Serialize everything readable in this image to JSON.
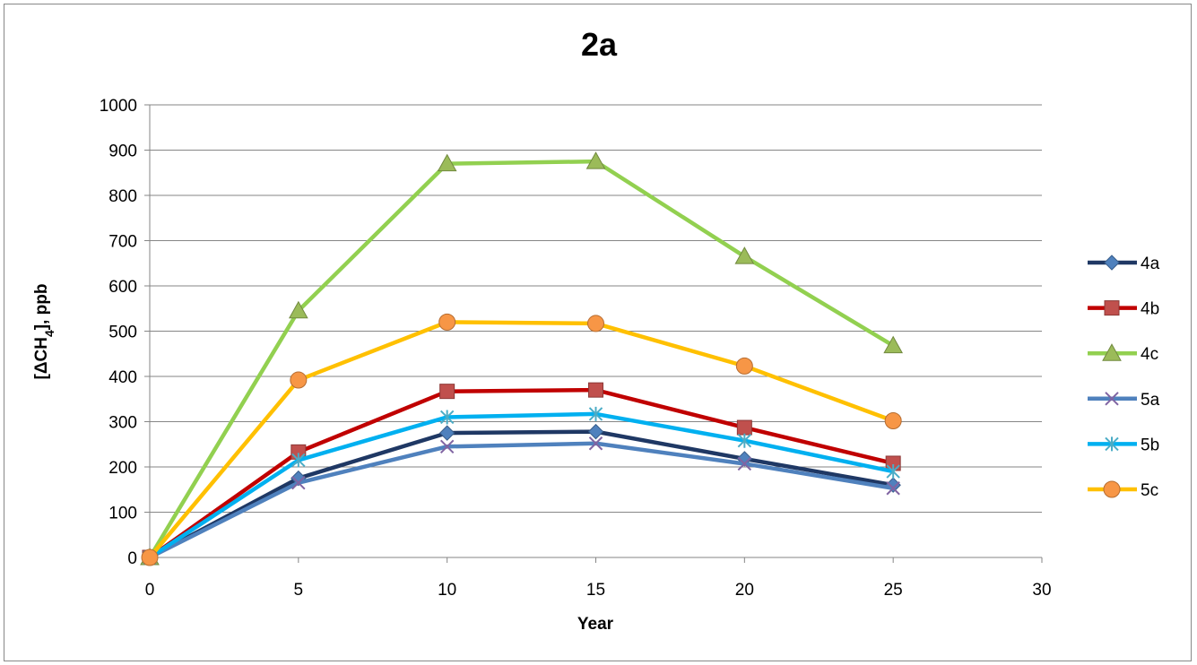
{
  "chart_data": {
    "type": "line",
    "title": "2a",
    "xlabel": "Year",
    "ylabel": {
      "main": "[ΔCH",
      "sub": "4",
      "tail": "], ppb"
    },
    "xlim": [
      0,
      30
    ],
    "ylim": [
      0,
      1000
    ],
    "xticks": [
      "0",
      "5",
      "10",
      "15",
      "20",
      "25",
      "30"
    ],
    "yticks": [
      "0",
      "100",
      "200",
      "300",
      "400",
      "500",
      "600",
      "700",
      "800",
      "900",
      "1000"
    ],
    "grid": "horizontal",
    "legend_position": "right",
    "x": [
      0,
      5,
      10,
      15,
      20,
      25
    ],
    "series": [
      {
        "name": "4a",
        "color": "#1F3864",
        "marker": "diamond",
        "marker_color": "#4F81BD",
        "values": [
          0,
          175,
          275,
          278,
          218,
          160
        ]
      },
      {
        "name": "4b",
        "color": "#C00000",
        "marker": "square",
        "marker_color": "#C0504D",
        "values": [
          0,
          233,
          367,
          370,
          287,
          208
        ]
      },
      {
        "name": "4c",
        "color": "#92D050",
        "marker": "triangle",
        "marker_color": "#9BBB59",
        "values": [
          0,
          545,
          870,
          875,
          665,
          468
        ]
      },
      {
        "name": "5a",
        "color": "#4F81BD",
        "marker": "x",
        "marker_color": "#8064A2",
        "values": [
          0,
          165,
          245,
          252,
          207,
          153
        ]
      },
      {
        "name": "5b",
        "color": "#00B0F0",
        "marker": "star",
        "marker_color": "#4BACC6",
        "values": [
          0,
          215,
          310,
          317,
          258,
          190
        ]
      },
      {
        "name": "5c",
        "color": "#FFC000",
        "marker": "circle",
        "marker_color": "#F79646",
        "values": [
          0,
          392,
          520,
          517,
          423,
          302
        ]
      }
    ]
  }
}
